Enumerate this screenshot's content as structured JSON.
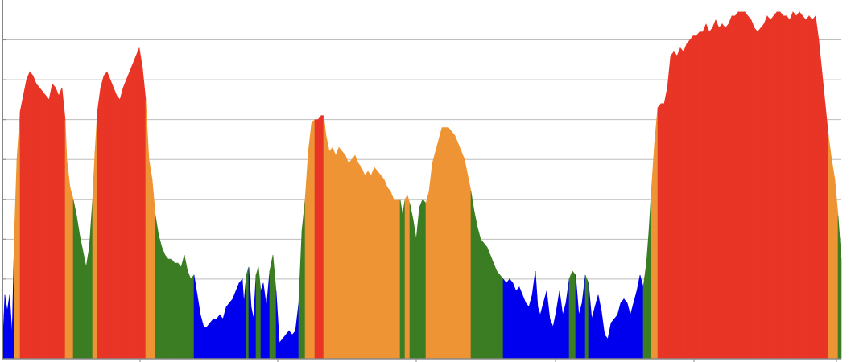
{
  "chart_data": {
    "type": "area",
    "title": "",
    "xlabel": "",
    "ylabel": "",
    "grid": "horizontal",
    "legend": "none",
    "xlim": [
      0,
      1042
    ],
    "ylim": [
      0,
      9
    ],
    "y_gridlines": [
      1,
      2,
      3,
      4,
      5,
      6,
      7,
      8
    ],
    "x_ticks": [
      171,
      342,
      514,
      687,
      859,
      1036
    ],
    "color_bands": [
      {
        "name": "blue",
        "color": "#0000ee",
        "min": 0,
        "max": 2
      },
      {
        "name": "green",
        "color": "#3a7d22",
        "min": 2,
        "max": 4
      },
      {
        "name": "orange",
        "color": "#ef9434",
        "min": 4,
        "max": 6
      },
      {
        "name": "red",
        "color": "#e83526",
        "min": 6,
        "max": 99
      }
    ],
    "gridline_color": "#bdbdbd",
    "axis_color": "#888888",
    "points": [
      [
        0,
        0.2
      ],
      [
        3,
        1.6
      ],
      [
        6,
        1.2
      ],
      [
        9,
        1.6
      ],
      [
        12,
        0.6
      ],
      [
        15,
        3.2
      ],
      [
        18,
        5.0
      ],
      [
        22,
        6.2
      ],
      [
        26,
        6.6
      ],
      [
        30,
        7.0
      ],
      [
        34,
        7.2
      ],
      [
        38,
        7.1
      ],
      [
        42,
        6.9
      ],
      [
        46,
        6.8
      ],
      [
        50,
        6.7
      ],
      [
        54,
        6.6
      ],
      [
        58,
        6.5
      ],
      [
        62,
        6.9
      ],
      [
        66,
        6.8
      ],
      [
        70,
        6.6
      ],
      [
        74,
        6.8
      ],
      [
        78,
        6.0
      ],
      [
        80,
        5.0
      ],
      [
        84,
        4.3
      ],
      [
        88,
        4.0
      ],
      [
        92,
        3.6
      ],
      [
        96,
        3.1
      ],
      [
        100,
        2.7
      ],
      [
        104,
        2.3
      ],
      [
        108,
        2.8
      ],
      [
        112,
        4.0
      ],
      [
        115,
        5.2
      ],
      [
        118,
        6.2
      ],
      [
        122,
        6.8
      ],
      [
        126,
        7.1
      ],
      [
        130,
        7.2
      ],
      [
        134,
        7.0
      ],
      [
        138,
        6.8
      ],
      [
        142,
        6.6
      ],
      [
        146,
        6.5
      ],
      [
        150,
        6.8
      ],
      [
        154,
        7.0
      ],
      [
        158,
        7.2
      ],
      [
        162,
        7.4
      ],
      [
        166,
        7.6
      ],
      [
        170,
        7.8
      ],
      [
        174,
        7.3
      ],
      [
        178,
        6.5
      ],
      [
        182,
        5.0
      ],
      [
        186,
        4.5
      ],
      [
        190,
        3.6
      ],
      [
        194,
        3.1
      ],
      [
        198,
        2.8
      ],
      [
        202,
        2.6
      ],
      [
        206,
        2.5
      ],
      [
        210,
        2.5
      ],
      [
        214,
        2.4
      ],
      [
        218,
        2.4
      ],
      [
        222,
        2.3
      ],
      [
        226,
        2.6
      ],
      [
        230,
        2.2
      ],
      [
        234,
        2.0
      ],
      [
        238,
        2.1
      ],
      [
        242,
        1.6
      ],
      [
        246,
        1.1
      ],
      [
        250,
        0.8
      ],
      [
        254,
        0.8
      ],
      [
        258,
        0.9
      ],
      [
        262,
        1.0
      ],
      [
        266,
        1.0
      ],
      [
        270,
        1.1
      ],
      [
        274,
        1.0
      ],
      [
        278,
        1.3
      ],
      [
        282,
        1.4
      ],
      [
        286,
        1.5
      ],
      [
        290,
        1.7
      ],
      [
        294,
        1.9
      ],
      [
        298,
        2.0
      ],
      [
        300,
        1.4
      ],
      [
        303,
        2.1
      ],
      [
        306,
        2.3
      ],
      [
        309,
        1.3
      ],
      [
        312,
        1.0
      ],
      [
        315,
        2.1
      ],
      [
        318,
        2.3
      ],
      [
        321,
        1.7
      ],
      [
        324,
        1.9
      ],
      [
        328,
        1.3
      ],
      [
        332,
        2.2
      ],
      [
        336,
        2.6
      ],
      [
        340,
        1.7
      ],
      [
        344,
        0.4
      ],
      [
        348,
        0.5
      ],
      [
        352,
        0.6
      ],
      [
        356,
        0.7
      ],
      [
        360,
        0.6
      ],
      [
        364,
        0.7
      ],
      [
        368,
        1.4
      ],
      [
        372,
        3.2
      ],
      [
        376,
        4.0
      ],
      [
        380,
        5.2
      ],
      [
        384,
        5.9
      ],
      [
        388,
        6.0
      ],
      [
        392,
        6.0
      ],
      [
        396,
        6.1
      ],
      [
        399,
        6.1
      ],
      [
        402,
        5.6
      ],
      [
        406,
        5.2
      ],
      [
        410,
        5.3
      ],
      [
        414,
        5.1
      ],
      [
        418,
        5.3
      ],
      [
        422,
        5.2
      ],
      [
        426,
        5.1
      ],
      [
        430,
        4.9
      ],
      [
        434,
        5.0
      ],
      [
        438,
        5.1
      ],
      [
        442,
        4.9
      ],
      [
        446,
        4.8
      ],
      [
        450,
        4.6
      ],
      [
        454,
        4.7
      ],
      [
        458,
        4.6
      ],
      [
        462,
        4.8
      ],
      [
        466,
        4.7
      ],
      [
        470,
        4.6
      ],
      [
        474,
        4.5
      ],
      [
        478,
        4.3
      ],
      [
        482,
        4.2
      ],
      [
        486,
        4.0
      ],
      [
        490,
        4.0
      ],
      [
        494,
        4.0
      ],
      [
        497,
        3.6
      ],
      [
        500,
        4.0
      ],
      [
        503,
        4.1
      ],
      [
        506,
        3.9
      ],
      [
        510,
        3.5
      ],
      [
        514,
        3.0
      ],
      [
        518,
        3.8
      ],
      [
        522,
        4.0
      ],
      [
        526,
        3.9
      ],
      [
        530,
        4.2
      ],
      [
        534,
        4.9
      ],
      [
        538,
        5.2
      ],
      [
        542,
        5.5
      ],
      [
        546,
        5.8
      ],
      [
        550,
        5.8
      ],
      [
        554,
        5.8
      ],
      [
        558,
        5.7
      ],
      [
        562,
        5.6
      ],
      [
        566,
        5.4
      ],
      [
        570,
        5.2
      ],
      [
        574,
        5.0
      ],
      [
        578,
        4.6
      ],
      [
        582,
        4.2
      ],
      [
        586,
        3.7
      ],
      [
        590,
        3.3
      ],
      [
        594,
        3.0
      ],
      [
        598,
        2.9
      ],
      [
        602,
        2.8
      ],
      [
        606,
        2.6
      ],
      [
        610,
        2.4
      ],
      [
        614,
        2.2
      ],
      [
        618,
        2.1
      ],
      [
        622,
        2.0
      ],
      [
        626,
        1.9
      ],
      [
        630,
        2.0
      ],
      [
        634,
        1.9
      ],
      [
        638,
        1.7
      ],
      [
        642,
        1.8
      ],
      [
        646,
        1.6
      ],
      [
        650,
        1.4
      ],
      [
        654,
        1.3
      ],
      [
        658,
        1.6
      ],
      [
        662,
        2.2
      ],
      [
        665,
        1.3
      ],
      [
        668,
        1.1
      ],
      [
        672,
        1.4
      ],
      [
        676,
        1.7
      ],
      [
        680,
        1.0
      ],
      [
        684,
        0.8
      ],
      [
        688,
        1.2
      ],
      [
        692,
        1.7
      ],
      [
        696,
        1.1
      ],
      [
        700,
        1.4
      ],
      [
        704,
        2.0
      ],
      [
        708,
        2.2
      ],
      [
        712,
        2.1
      ],
      [
        716,
        1.1
      ],
      [
        720,
        1.4
      ],
      [
        724,
        2.1
      ],
      [
        728,
        1.9
      ],
      [
        732,
        1.0
      ],
      [
        736,
        1.3
      ],
      [
        740,
        1.6
      ],
      [
        744,
        1.2
      ],
      [
        748,
        0.6
      ],
      [
        752,
        0.5
      ],
      [
        756,
        0.9
      ],
      [
        760,
        1.0
      ],
      [
        764,
        1.1
      ],
      [
        768,
        1.4
      ],
      [
        772,
        1.5
      ],
      [
        776,
        1.4
      ],
      [
        780,
        1.1
      ],
      [
        784,
        1.4
      ],
      [
        788,
        1.7
      ],
      [
        792,
        2.1
      ],
      [
        796,
        1.8
      ],
      [
        800,
        2.4
      ],
      [
        803,
        3.2
      ],
      [
        806,
        4.2
      ],
      [
        810,
        5.4
      ],
      [
        814,
        6.3
      ],
      [
        818,
        6.4
      ],
      [
        822,
        6.4
      ],
      [
        826,
        6.8
      ],
      [
        830,
        7.6
      ],
      [
        834,
        7.7
      ],
      [
        838,
        7.6
      ],
      [
        842,
        7.8
      ],
      [
        846,
        7.7
      ],
      [
        850,
        7.9
      ],
      [
        854,
        8.0
      ],
      [
        858,
        8.1
      ],
      [
        862,
        8.1
      ],
      [
        866,
        8.2
      ],
      [
        870,
        8.2
      ],
      [
        874,
        8.4
      ],
      [
        878,
        8.2
      ],
      [
        882,
        8.3
      ],
      [
        886,
        8.5
      ],
      [
        890,
        8.3
      ],
      [
        894,
        8.4
      ],
      [
        898,
        8.3
      ],
      [
        902,
        8.4
      ],
      [
        906,
        8.6
      ],
      [
        910,
        8.6
      ],
      [
        914,
        8.7
      ],
      [
        918,
        8.7
      ],
      [
        922,
        8.7
      ],
      [
        926,
        8.6
      ],
      [
        930,
        8.5
      ],
      [
        934,
        8.3
      ],
      [
        938,
        8.2
      ],
      [
        942,
        8.3
      ],
      [
        946,
        8.4
      ],
      [
        950,
        8.6
      ],
      [
        954,
        8.5
      ],
      [
        958,
        8.6
      ],
      [
        962,
        8.7
      ],
      [
        966,
        8.7
      ],
      [
        970,
        8.6
      ],
      [
        974,
        8.6
      ],
      [
        978,
        8.5
      ],
      [
        982,
        8.7
      ],
      [
        986,
        8.6
      ],
      [
        990,
        8.7
      ],
      [
        994,
        8.6
      ],
      [
        998,
        8.5
      ],
      [
        1002,
        8.6
      ],
      [
        1006,
        8.5
      ],
      [
        1010,
        8.6
      ],
      [
        1014,
        8.0
      ],
      [
        1018,
        7.2
      ],
      [
        1022,
        6.4
      ],
      [
        1026,
        5.6
      ],
      [
        1030,
        5.0
      ],
      [
        1034,
        4.5
      ],
      [
        1038,
        3.6
      ],
      [
        1042,
        2.5
      ]
    ]
  }
}
